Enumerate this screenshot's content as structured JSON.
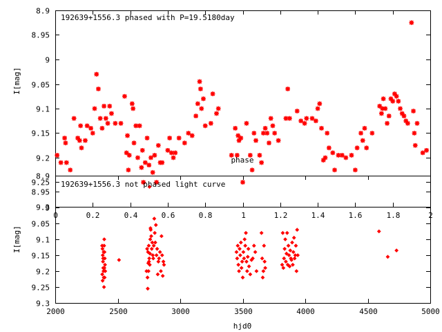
{
  "chart_data": [
    {
      "type": "scatter",
      "title": "192639+1556.3 phased with P=19.5180day",
      "xlabel": "phase",
      "ylabel": "I[mag]",
      "xlim": [
        0,
        2
      ],
      "ylim": [
        8.9,
        9.3
      ],
      "y_inverted": true,
      "x_ticks": [
        "0",
        "0.2",
        "0.4",
        "0.6",
        "0.8",
        "1",
        "1.2",
        "1.4",
        "1.6",
        "1.8",
        "2"
      ],
      "y_ticks": [
        "8.9",
        "8.95",
        "9",
        "9.05",
        "9.1",
        "9.15",
        "9.2",
        "9.25",
        "9.3"
      ],
      "marker_color": "#ff0000",
      "grid": false,
      "points": [
        [
          0.01,
          9.195
        ],
        [
          0.03,
          9.21
        ],
        [
          0.05,
          9.16
        ],
        [
          0.055,
          9.17
        ],
        [
          0.06,
          9.21
        ],
        [
          0.08,
          9.225
        ],
        [
          0.1,
          9.12
        ],
        [
          0.12,
          9.16
        ],
        [
          0.13,
          9.165
        ],
        [
          0.135,
          9.135
        ],
        [
          0.14,
          9.18
        ],
        [
          0.16,
          9.165
        ],
        [
          0.17,
          9.135
        ],
        [
          0.19,
          9.14
        ],
        [
          0.2,
          9.15
        ],
        [
          0.21,
          9.1
        ],
        [
          0.22,
          9.03
        ],
        [
          0.23,
          9.06
        ],
        [
          0.24,
          9.12
        ],
        [
          0.25,
          9.14
        ],
        [
          0.26,
          9.095
        ],
        [
          0.27,
          9.12
        ],
        [
          0.28,
          9.13
        ],
        [
          0.29,
          9.095
        ],
        [
          0.3,
          9.11
        ],
        [
          0.32,
          9.13
        ],
        [
          0.35,
          9.13
        ],
        [
          0.37,
          9.075
        ],
        [
          0.38,
          9.19
        ],
        [
          0.385,
          9.155
        ],
        [
          0.39,
          9.225
        ],
        [
          0.395,
          9.195
        ],
        [
          0.41,
          9.09
        ],
        [
          0.415,
          9.1
        ],
        [
          0.42,
          9.17
        ],
        [
          0.43,
          9.135
        ],
        [
          0.44,
          9.2
        ],
        [
          0.45,
          9.135
        ],
        [
          0.46,
          9.22
        ],
        [
          0.465,
          9.185
        ],
        [
          0.47,
          9.25
        ],
        [
          0.48,
          9.21
        ],
        [
          0.49,
          9.16
        ],
        [
          0.5,
          9.215
        ],
        [
          0.51,
          9.2
        ],
        [
          0.52,
          9.23
        ],
        [
          0.53,
          9.195
        ],
        [
          0.54,
          9.25
        ],
        [
          0.55,
          9.175
        ],
        [
          0.56,
          9.21
        ],
        [
          0.57,
          9.21
        ],
        [
          0.6,
          9.185
        ],
        [
          0.61,
          9.16
        ],
        [
          0.62,
          9.19
        ],
        [
          0.63,
          9.2
        ],
        [
          0.64,
          9.19
        ],
        [
          0.66,
          9.16
        ],
        [
          0.69,
          9.17
        ],
        [
          0.71,
          9.15
        ],
        [
          0.73,
          9.155
        ],
        [
          0.75,
          9.115
        ],
        [
          0.76,
          9.09
        ],
        [
          0.77,
          9.045
        ],
        [
          0.775,
          9.06
        ],
        [
          0.78,
          9.1
        ],
        [
          0.79,
          9.08
        ],
        [
          0.8,
          9.135
        ],
        [
          0.83,
          9.13
        ],
        [
          0.84,
          9.07
        ],
        [
          0.86,
          9.11
        ],
        [
          0.87,
          9.1
        ],
        [
          0.94,
          9.195
        ],
        [
          0.96,
          9.14
        ],
        [
          0.97,
          9.195
        ],
        [
          0.975,
          9.155
        ],
        [
          0.98,
          9.165
        ],
        [
          0.99,
          9.16
        ],
        [
          1.0,
          9.25
        ],
        [
          1.02,
          9.13
        ],
        [
          1.04,
          9.195
        ],
        [
          1.05,
          9.225
        ],
        [
          1.06,
          9.15
        ],
        [
          1.07,
          9.165
        ],
        [
          1.09,
          9.195
        ],
        [
          1.1,
          9.21
        ],
        [
          1.11,
          9.15
        ],
        [
          1.12,
          9.14
        ],
        [
          1.13,
          9.15
        ],
        [
          1.14,
          9.17
        ],
        [
          1.15,
          9.12
        ],
        [
          1.16,
          9.135
        ],
        [
          1.17,
          9.15
        ],
        [
          1.19,
          9.165
        ],
        [
          1.23,
          9.12
        ],
        [
          1.24,
          9.06
        ],
        [
          1.25,
          9.12
        ],
        [
          1.29,
          9.105
        ],
        [
          1.31,
          9.125
        ],
        [
          1.33,
          9.13
        ],
        [
          1.34,
          9.12
        ],
        [
          1.37,
          9.12
        ],
        [
          1.39,
          9.125
        ],
        [
          1.4,
          9.1
        ],
        [
          1.41,
          9.09
        ],
        [
          1.42,
          9.14
        ],
        [
          1.43,
          9.205
        ],
        [
          1.44,
          9.2
        ],
        [
          1.45,
          9.15
        ],
        [
          1.46,
          9.18
        ],
        [
          1.48,
          9.19
        ],
        [
          1.49,
          9.225
        ],
        [
          1.51,
          9.195
        ],
        [
          1.53,
          9.195
        ],
        [
          1.55,
          9.2
        ],
        [
          1.58,
          9.195
        ],
        [
          1.6,
          9.225
        ],
        [
          1.61,
          9.18
        ],
        [
          1.63,
          9.15
        ],
        [
          1.64,
          9.165
        ],
        [
          1.65,
          9.14
        ],
        [
          1.66,
          9.18
        ],
        [
          1.69,
          9.15
        ],
        [
          1.73,
          9.095
        ],
        [
          1.74,
          9.11
        ],
        [
          1.745,
          9.1
        ],
        [
          1.75,
          9.08
        ],
        [
          1.76,
          9.1
        ],
        [
          1.77,
          9.13
        ],
        [
          1.78,
          9.115
        ],
        [
          1.79,
          9.08
        ],
        [
          1.8,
          9.085
        ],
        [
          1.81,
          9.07
        ],
        [
          1.82,
          9.075
        ],
        [
          1.83,
          9.085
        ],
        [
          1.84,
          9.1
        ],
        [
          1.85,
          9.11
        ],
        [
          1.86,
          9.115
        ],
        [
          1.87,
          9.125
        ],
        [
          1.88,
          9.13
        ],
        [
          1.9,
          8.925
        ],
        [
          1.91,
          9.105
        ],
        [
          1.915,
          9.15
        ],
        [
          1.92,
          9.175
        ],
        [
          1.93,
          9.13
        ],
        [
          1.96,
          9.19
        ],
        [
          1.98,
          9.185
        ]
      ]
    },
    {
      "type": "scatter",
      "title": "192639+1556.3 not phased light curve",
      "xlabel": "hjd0",
      "ylabel": "I[mag]",
      "xlim": [
        2000,
        5000
      ],
      "ylim": [
        8.9,
        9.3
      ],
      "y_inverted": true,
      "x_ticks": [
        "2000",
        "2500",
        "3000",
        "3500",
        "4000",
        "4500",
        "5000"
      ],
      "y_ticks": [
        "8.9",
        "8.95",
        "9",
        "9.05",
        "9.1",
        "9.15",
        "9.2",
        "9.25",
        "9.3"
      ],
      "marker_color": "#ff0000",
      "grid": false,
      "points": [
        [
          2375,
          9.12
        ],
        [
          2378,
          9.13
        ],
        [
          2380,
          9.15
        ],
        [
          2382,
          9.17
        ],
        [
          2384,
          9.19
        ],
        [
          2386,
          9.2
        ],
        [
          2388,
          9.22
        ],
        [
          2390,
          9.25
        ],
        [
          2392,
          9.1
        ],
        [
          2394,
          9.14
        ],
        [
          2396,
          9.16
        ],
        [
          2398,
          9.18
        ],
        [
          2400,
          9.2
        ],
        [
          2376,
          9.21
        ],
        [
          2379,
          9.23
        ],
        [
          2383,
          9.16
        ],
        [
          2387,
          9.14
        ],
        [
          2391,
          9.12
        ],
        [
          2395,
          9.22
        ],
        [
          2393,
          9.19
        ],
        [
          2510,
          9.165
        ],
        [
          2730,
          9.2
        ],
        [
          2735,
          9.13
        ],
        [
          2738,
          9.22
        ],
        [
          2740,
          9.255
        ],
        [
          2742,
          9.14
        ],
        [
          2744,
          9.175
        ],
        [
          2746,
          9.2
        ],
        [
          2748,
          9.12
        ],
        [
          2750,
          9.17
        ],
        [
          2752,
          9.16
        ],
        [
          2754,
          8.935
        ],
        [
          2756,
          9.18
        ],
        [
          2758,
          9.145
        ],
        [
          2760,
          9.1
        ],
        [
          2762,
          9.065
        ],
        [
          2764,
          9.07
        ],
        [
          2768,
          9.09
        ],
        [
          2772,
          9.13
        ],
        [
          2776,
          9.11
        ],
        [
          2780,
          9.15
        ],
        [
          2784,
          9.16
        ],
        [
          2788,
          9.12
        ],
        [
          2792,
          9.035
        ],
        [
          2796,
          9.08
        ],
        [
          2800,
          9.11
        ],
        [
          2805,
          9.055
        ],
        [
          2810,
          9.15
        ],
        [
          2815,
          9.13
        ],
        [
          2820,
          9.21
        ],
        [
          2825,
          9.17
        ],
        [
          2830,
          9.16
        ],
        [
          2838,
          9.14
        ],
        [
          2845,
          9.2
        ],
        [
          2850,
          9.09
        ],
        [
          2855,
          9.15
        ],
        [
          2860,
          9.215
        ],
        [
          2865,
          9.17
        ],
        [
          2870,
          9.18
        ],
        [
          3450,
          9.14
        ],
        [
          3455,
          9.16
        ],
        [
          3460,
          9.12
        ],
        [
          3465,
          9.18
        ],
        [
          3470,
          9.2
        ],
        [
          3475,
          9.13
        ],
        [
          3480,
          9.15
        ],
        [
          3485,
          9.11
        ],
        [
          3490,
          9.19
        ],
        [
          3495,
          9.17
        ],
        [
          3500,
          9.22
        ],
        [
          3505,
          9.14
        ],
        [
          3510,
          9.16
        ],
        [
          3515,
          9.1
        ],
        [
          3520,
          9.12
        ],
        [
          3525,
          9.08
        ],
        [
          3530,
          9.17
        ],
        [
          3535,
          9.2
        ],
        [
          3540,
          9.155
        ],
        [
          3545,
          9.13
        ],
        [
          3550,
          9.185
        ],
        [
          3560,
          9.21
        ],
        [
          3570,
          9.165
        ],
        [
          3580,
          9.16
        ],
        [
          3590,
          9.12
        ],
        [
          3600,
          9.14
        ],
        [
          3610,
          9.2
        ],
        [
          3650,
          9.08
        ],
        [
          3655,
          9.16
        ],
        [
          3660,
          9.22
        ],
        [
          3665,
          9.2
        ],
        [
          3670,
          9.12
        ],
        [
          3675,
          9.17
        ],
        [
          3680,
          9.19
        ],
        [
          3815,
          9.18
        ],
        [
          3820,
          9.08
        ],
        [
          3825,
          9.19
        ],
        [
          3830,
          9.16
        ],
        [
          3835,
          9.13
        ],
        [
          3840,
          9.1
        ],
        [
          3845,
          9.17
        ],
        [
          3850,
          9.145
        ],
        [
          3855,
          9.08
        ],
        [
          3860,
          9.18
        ],
        [
          3865,
          9.12
        ],
        [
          3870,
          9.15
        ],
        [
          3875,
          9.185
        ],
        [
          3880,
          9.135
        ],
        [
          3885,
          9.16
        ],
        [
          3890,
          9.165
        ],
        [
          3895,
          9.11
        ],
        [
          3900,
          9.18
        ],
        [
          3905,
          9.14
        ],
        [
          3910,
          9.095
        ],
        [
          3915,
          9.16
        ],
        [
          3920,
          9.15
        ],
        [
          3925,
          9.12
        ],
        [
          3930,
          9.2
        ],
        [
          3935,
          9.07
        ],
        [
          3940,
          9.15
        ],
        [
          4590,
          9.075
        ],
        [
          4660,
          9.155
        ],
        [
          4730,
          9.135
        ]
      ]
    }
  ]
}
